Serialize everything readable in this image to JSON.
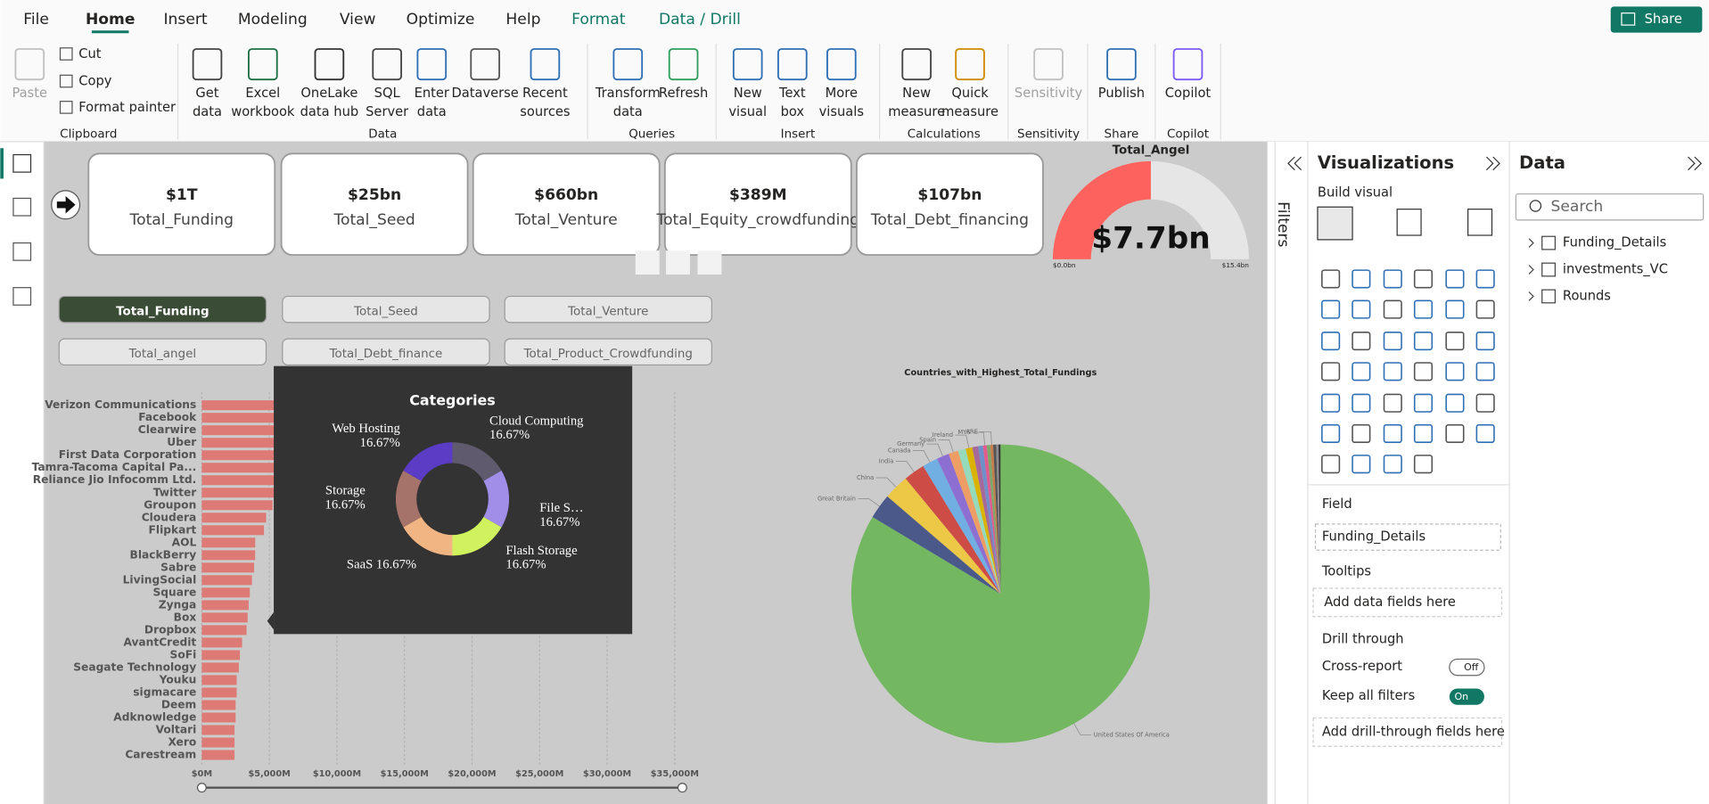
{
  "ribbon": {
    "tabs": [
      "File",
      "Home",
      "Insert",
      "Modeling",
      "View",
      "Optimize",
      "Help",
      "Format",
      "Data / Drill"
    ],
    "share": "Share",
    "clipboard_items": [
      "Cut",
      "Copy",
      "Format painter"
    ],
    "buttons": [
      {
        "lines": [
          "Paste"
        ]
      },
      {
        "lines": [
          "Get",
          "data"
        ]
      },
      {
        "lines": [
          "Excel",
          "workbook"
        ]
      },
      {
        "lines": [
          "OneLake",
          "data hub"
        ]
      },
      {
        "lines": [
          "SQL",
          "Server"
        ]
      },
      {
        "lines": [
          "Enter",
          "data"
        ]
      },
      {
        "lines": [
          "Dataverse"
        ]
      },
      {
        "lines": [
          "Recent",
          "sources"
        ]
      },
      {
        "lines": [
          "Transform",
          "data"
        ]
      },
      {
        "lines": [
          "Refresh"
        ]
      },
      {
        "lines": [
          "New",
          "visual"
        ]
      },
      {
        "lines": [
          "Text",
          "box"
        ]
      },
      {
        "lines": [
          "More",
          "visuals"
        ]
      },
      {
        "lines": [
          "New",
          "measure"
        ]
      },
      {
        "lines": [
          "Quick",
          "measure"
        ]
      },
      {
        "lines": [
          "Sensitivity"
        ]
      },
      {
        "lines": [
          "Publish"
        ]
      },
      {
        "lines": [
          "Copilot"
        ]
      }
    ],
    "groups": [
      "Clipboard",
      "Data",
      "Queries",
      "Insert",
      "Calculations",
      "Sensitivity",
      "Share",
      "Copilot"
    ]
  },
  "page": {
    "cards": [
      {
        "value": "$1T",
        "label": "Total_Funding"
      },
      {
        "value": "$25bn",
        "label": "Total_Seed"
      },
      {
        "value": "$660bn",
        "label": "Total_Venture"
      },
      {
        "value": "$389M",
        "label": "Total_Equity_crowdfunding"
      },
      {
        "value": "$107bn",
        "label": "Total_Debt_financing"
      }
    ],
    "gauge": {
      "title": "Total_Angel",
      "value": {
        "value": 7.7,
        "label": "$7.7bn"
      },
      "min": {
        "value": 0,
        "label": "$0.0bn"
      },
      "max": {
        "value": 15.4,
        "label": "$15.4bn"
      },
      "color": "#fd625e"
    },
    "slicer": {
      "items": [
        "Total_Funding",
        "Total_Seed",
        "Total_Venture",
        "Total_angel",
        "Total_Debt_finance",
        "Total_Product_Crowdfunding"
      ],
      "selected_index": 0
    },
    "bar_chart": {
      "type": "bar",
      "orientation": "horizontal",
      "categories": [
        "Verizon Communications",
        "Facebook",
        "Clearwire",
        "Uber",
        "First Data Corporation",
        "Tamra-Tacoma Capital Pa...",
        "Reliance Jio Infocomm Ltd.",
        "Twitter",
        "Groupon",
        "Cloudera",
        "Flipkart",
        "AOL",
        "BlackBerry",
        "Sabre",
        "LivingSocial",
        "Square",
        "Zynga",
        "Box",
        "Dropbox",
        "AvantCredit",
        "SoFi",
        "Seagate Technology",
        "Youku",
        "sigmacare",
        "Deem",
        "Adknowledge",
        "Voltari",
        "Xero",
        "Carestream"
      ],
      "values": [
        30000,
        15000,
        10000,
        9000,
        7000,
        6500,
        6000,
        5500,
        5240,
        4760,
        4600,
        3950,
        3950,
        3870,
        3710,
        3550,
        3470,
        3390,
        3310,
        2980,
        2820,
        2740,
        2580,
        2580,
        2500,
        2500,
        2420,
        2420,
        2420
      ],
      "color": "#dd7a75",
      "xlim": [
        0,
        36500
      ],
      "xticks": [
        {
          "value": 0,
          "label": "$0M"
        },
        {
          "value": 5000,
          "label": "$5,000M"
        },
        {
          "value": 10000,
          "label": "$10,000M"
        },
        {
          "value": 15000,
          "label": "$15,000M"
        },
        {
          "value": 20000,
          "label": "$20,000M"
        },
        {
          "value": 25000,
          "label": "$25,000M"
        },
        {
          "value": 30000,
          "label": "$30,000M"
        },
        {
          "value": 35000,
          "label": "$35,000M"
        }
      ],
      "grid": true
    },
    "tooltip": {
      "type": "donut",
      "title": "Categories",
      "categories": [
        "Cloud Computing",
        "File S…",
        "Flash Storage",
        "SaaS",
        "Storage",
        "Web Hosting"
      ],
      "values": [
        16.67,
        16.67,
        16.67,
        16.67,
        16.67,
        16.67
      ],
      "value_labels": [
        "16.67%",
        "16.67%",
        "16.67%",
        "16.67%",
        "16.67%",
        "16.67%"
      ],
      "colors": [
        "#5f5a6e",
        "#a08ee8",
        "#cff25e",
        "#f1b583",
        "#a6736a",
        "#5b3cc4"
      ]
    },
    "pie_chart": {
      "type": "pie",
      "title": "Countries_with_Highest_Total_Fundings",
      "categories": [
        "United States Of America",
        "Great Britain",
        "China",
        "India",
        "Canada",
        "Germany",
        "Spain",
        null,
        "Ireland",
        null,
        null,
        "MYS",
        null,
        "ARE",
        null,
        null,
        null
      ],
      "values": [
        80,
        2.6,
        2.6,
        2.2,
        1.6,
        1.3,
        1.0,
        0.8,
        0.7,
        0.6,
        0.5,
        0.4,
        0.35,
        0.3,
        0.3,
        0.25,
        0.2
      ],
      "colors": [
        "#73b761",
        "#4a588a",
        "#ecc846",
        "#cd4c46",
        "#71afe2",
        "#8d6fd1",
        "#ee9e64",
        "#95dabb",
        "#d9b300",
        "#a66999",
        "#6f8fc9",
        "#e05b8e",
        "#7aa96b",
        "#c47d4b",
        "#555555",
        "#8b8b8b",
        "#333333"
      ]
    }
  },
  "filters": {
    "title": "Filters"
  },
  "visualizations": {
    "title": "Visualizations",
    "subtitle": "Build visual",
    "field_label": "Field",
    "field_value": "Funding_Details",
    "tooltips_label": "Tooltips",
    "tooltips_placeholder": "Add data fields here",
    "drill_label": "Drill through",
    "cross_report": "Cross-report",
    "cross_report_state": "Off",
    "keep_filters": "Keep all filters",
    "keep_filters_state": "On",
    "drill_placeholder": "Add drill-through fields here"
  },
  "data_pane": {
    "title": "Data",
    "search": "Search",
    "tables": [
      "Funding_Details",
      "investments_VC",
      "Rounds"
    ]
  }
}
